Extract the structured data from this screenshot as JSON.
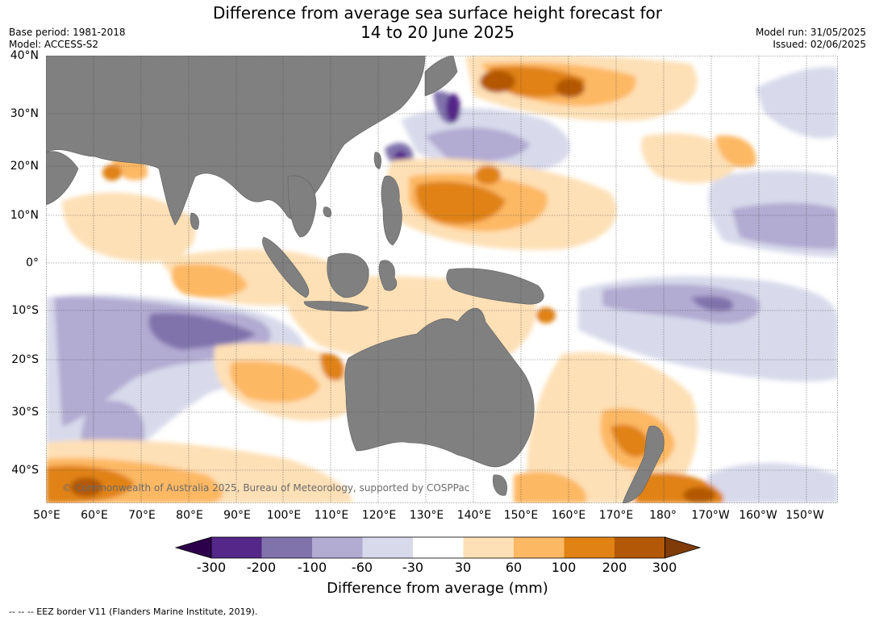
{
  "header": {
    "title_line1": "Difference from average sea surface height forecast for",
    "title_line2": "14 to 20 June 2025",
    "base_period": "Base period: 1981-2018",
    "model": "Model: ACCESS-S2",
    "model_run": "Model run: 31/05/2025",
    "issued": "Issued: 02/06/2025"
  },
  "map": {
    "lat_labels": [
      "40°N",
      "30°N",
      "20°N",
      "10°N",
      "0°",
      "10°S",
      "20°S",
      "30°S",
      "40°S"
    ],
    "lon_labels": [
      "50°E",
      "60°E",
      "70°E",
      "80°E",
      "90°E",
      "100°E",
      "110°E",
      "120°E",
      "130°E",
      "140°E",
      "150°E",
      "160°E",
      "170°E",
      "180°",
      "170°W",
      "160°W",
      "150°W"
    ],
    "credit": "© Commonwealth of Australia 2025, Bureau of Meteorology, supported by COSPPac",
    "land_color": "#808080"
  },
  "colorbar": {
    "title": "Difference from average (mm)",
    "ticks": [
      "-300",
      "-200",
      "-100",
      "-60",
      "-30",
      "30",
      "60",
      "100",
      "200",
      "300"
    ],
    "colors": {
      "below_min": "#2d004b",
      "c1": "#542788",
      "c2": "#8073ac",
      "c3": "#b2abd2",
      "c4": "#d8daeb",
      "c5": "#ffffff",
      "c6": "#fee0b6",
      "c7": "#fdb863",
      "c8": "#e08214",
      "c9": "#b35806",
      "above_max": "#7f3b08"
    }
  },
  "footer": {
    "eez_note": "--  --  -- EEZ border V11 (Flanders Marine Institute, 2019)."
  }
}
